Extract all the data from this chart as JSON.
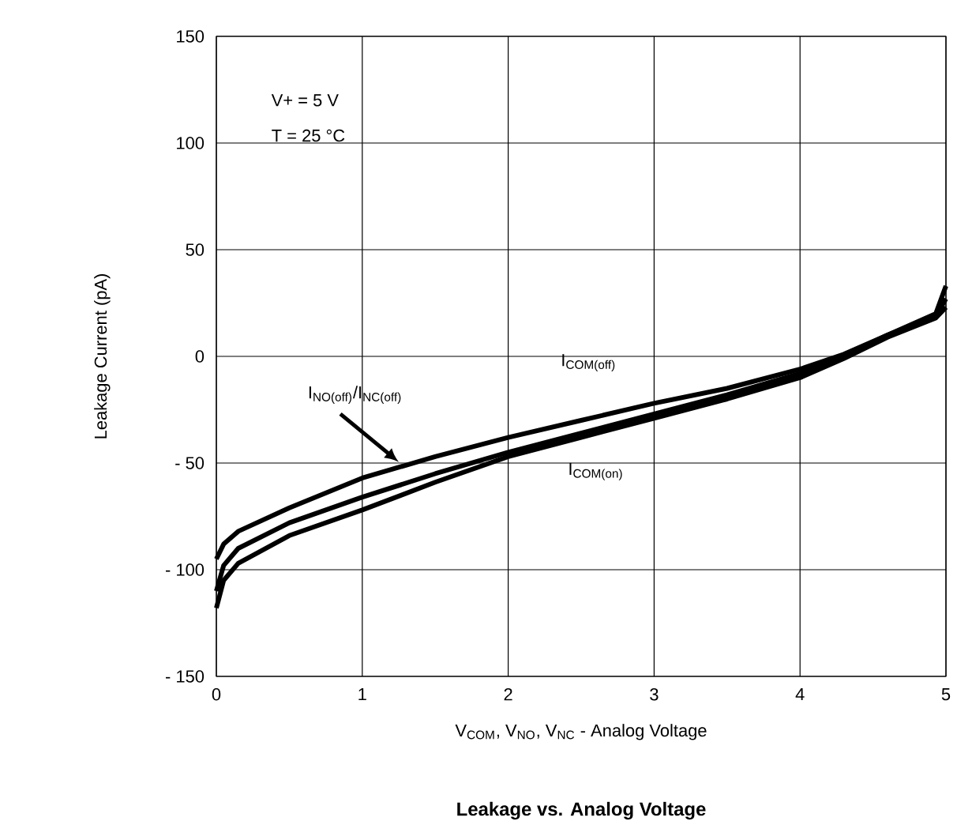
{
  "chart_data": {
    "type": "line",
    "title": "**Leakage vs. Analog Voltage**",
    "xlabel": "V$_{COM}$, V$_{NO}$, V$_{NC}$ - Analog Voltage",
    "ylabel": "Leakage Current (pA)",
    "xlim": [
      0,
      5
    ],
    "ylim": [
      -150,
      150
    ],
    "xticks": [
      0,
      1,
      2,
      3,
      4,
      5
    ],
    "yticks": [
      {
        "value": -150,
        "label": "- 150"
      },
      {
        "value": -100,
        "label": "- 100"
      },
      {
        "value": -50,
        "label": "- 50"
      },
      0,
      50,
      100,
      150
    ],
    "grid": true,
    "line_style": "solid",
    "series": [
      {
        "color": "#000000",
        "x": [
          0,
          0.05,
          0.15,
          0.5,
          1,
          1.5,
          2,
          2.5,
          3,
          3.5,
          4,
          4.3,
          4.6,
          4.93,
          5
        ],
        "values": [
          -95,
          -88,
          -82,
          -71,
          -57,
          -47,
          -38,
          -30,
          -22,
          -15,
          -6,
          1,
          10,
          20,
          33
        ]
      },
      {
        "color": "#000000",
        "x": [
          0,
          0.05,
          0.15,
          0.5,
          1,
          1.5,
          2,
          2.5,
          3,
          3.5,
          4,
          4.3,
          4.6,
          4.93,
          5
        ],
        "values": [
          -110,
          -98,
          -90,
          -78,
          -66,
          -55,
          -45,
          -36,
          -27,
          -18,
          -8,
          0,
          10,
          19,
          27
        ]
      },
      {
        "color": "#000000",
        "x": [
          0,
          0.05,
          0.15,
          0.5,
          1,
          1.5,
          2,
          2.5,
          3,
          3.5,
          4,
          4.3,
          4.6,
          4.93,
          5
        ],
        "values": [
          -118,
          -105,
          -97,
          -84,
          -72,
          -59,
          -47,
          -38,
          -29,
          -20,
          -10,
          -1,
          9,
          18,
          23
        ]
      }
    ],
    "annotations": [
      "V+ = 5 V",
      "T = 25 °C",
      "I$_{COM(off)}$",
      "I$_{NO(off)}$/I$_{NC(off)}$",
      "I$_{COM(on)}$"
    ]
  }
}
